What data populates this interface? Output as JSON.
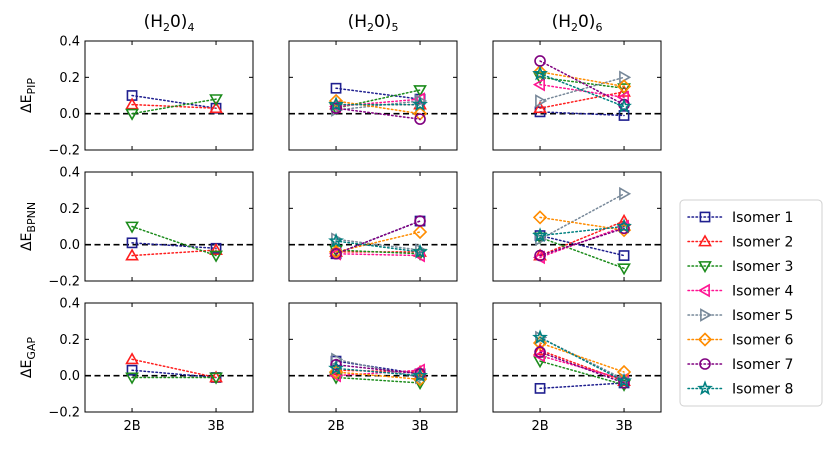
{
  "chart_data": {
    "type": "line",
    "x_categories": [
      "2B",
      "3B"
    ],
    "ylim": [
      -0.2,
      0.4
    ],
    "yticks": [
      -0.2,
      0.0,
      0.2,
      0.4
    ],
    "ytick_labels": [
      "−0.2",
      "0.0",
      "0.2",
      "0.4"
    ],
    "reference_line": 0.0,
    "columns": [
      {
        "pre": "(H",
        "sub1": "2",
        "mid": "0)",
        "sub2": "4"
      },
      {
        "pre": "(H",
        "sub1": "2",
        "mid": "0)",
        "sub2": "5"
      },
      {
        "pre": "(H",
        "sub1": "2",
        "mid": "0)",
        "sub2": "6"
      }
    ],
    "rows": [
      {
        "base": "ΔE",
        "sub": "PIP"
      },
      {
        "base": "ΔE",
        "sub": "BPNN"
      },
      {
        "base": "ΔE",
        "sub": "GAP"
      }
    ],
    "series": [
      {
        "name": "Isomer 1",
        "color": "#1f1f8f",
        "marker": "square"
      },
      {
        "name": "Isomer 2",
        "color": "#ff1f1f",
        "marker": "triangle-up"
      },
      {
        "name": "Isomer 3",
        "color": "#1c8c1c",
        "marker": "triangle-down"
      },
      {
        "name": "Isomer 4",
        "color": "#ff1493",
        "marker": "triangle-left"
      },
      {
        "name": "Isomer 5",
        "color": "#778899",
        "marker": "triangle-right"
      },
      {
        "name": "Isomer 6",
        "color": "#ff8c00",
        "marker": "diamond"
      },
      {
        "name": "Isomer 7",
        "color": "#800080",
        "marker": "circle"
      },
      {
        "name": "Isomer 8",
        "color": "#008080",
        "marker": "star"
      }
    ],
    "panels": [
      [
        {
          "values": [
            [
              0.1,
              0.03
            ],
            [
              0.05,
              0.03
            ],
            [
              0.0,
              0.08
            ]
          ]
        },
        {
          "values": [
            [
              0.14,
              0.08
            ],
            [
              0.05,
              0.05
            ],
            [
              0.03,
              0.13
            ],
            [
              0.04,
              0.08
            ],
            [
              0.02,
              0.07
            ],
            [
              0.07,
              0.0
            ],
            [
              0.03,
              -0.03
            ],
            [
              0.05,
              0.05
            ]
          ]
        },
        {
          "values": [
            [
              0.01,
              -0.01
            ],
            [
              0.03,
              0.12
            ],
            [
              0.2,
              0.14
            ],
            [
              0.16,
              0.09
            ],
            [
              0.07,
              0.2
            ],
            [
              0.23,
              0.15
            ],
            [
              0.29,
              0.05
            ],
            [
              0.22,
              0.04
            ]
          ]
        }
      ],
      [
        {
          "values": [
            [
              0.01,
              -0.02
            ],
            [
              -0.06,
              -0.03
            ],
            [
              0.1,
              -0.06
            ]
          ]
        },
        {
          "values": [
            [
              -0.05,
              0.13
            ],
            [
              -0.04,
              -0.04
            ],
            [
              -0.03,
              -0.05
            ],
            [
              -0.05,
              -0.06
            ],
            [
              0.03,
              -0.03
            ],
            [
              -0.04,
              0.07
            ],
            [
              -0.05,
              0.13
            ],
            [
              0.02,
              -0.04
            ]
          ]
        },
        {
          "values": [
            [
              0.05,
              -0.06
            ],
            [
              -0.06,
              0.13
            ],
            [
              0.04,
              -0.13
            ],
            [
              -0.07,
              0.1
            ],
            [
              0.03,
              0.28
            ],
            [
              0.15,
              0.08
            ],
            [
              -0.06,
              0.09
            ],
            [
              0.05,
              0.1
            ]
          ]
        }
      ],
      [
        {
          "values": [
            [
              0.03,
              -0.01
            ],
            [
              0.09,
              -0.01
            ],
            [
              -0.01,
              -0.01
            ]
          ]
        },
        {
          "values": [
            [
              0.08,
              0.01
            ],
            [
              0.03,
              0.02
            ],
            [
              -0.01,
              -0.04
            ],
            [
              0.0,
              0.03
            ],
            [
              0.09,
              -0.01
            ],
            [
              0.02,
              -0.02
            ],
            [
              0.06,
              0.01
            ],
            [
              0.04,
              0.0
            ]
          ]
        },
        {
          "values": [
            [
              -0.07,
              -0.04
            ],
            [
              0.14,
              -0.03
            ],
            [
              0.08,
              -0.05
            ],
            [
              0.11,
              -0.02
            ],
            [
              0.21,
              -0.02
            ],
            [
              0.18,
              0.02
            ],
            [
              0.13,
              -0.04
            ],
            [
              0.21,
              -0.03
            ]
          ]
        }
      ]
    ]
  }
}
